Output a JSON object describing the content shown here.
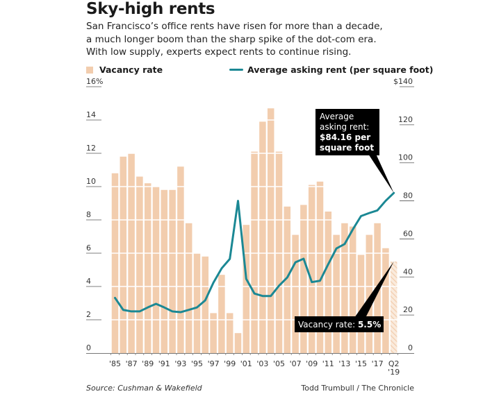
{
  "header": {
    "title": "Sky-high rents",
    "subtitle_lines": [
      "San Francisco’s office rents have risen for more than a decade,",
      "a much longer boom than the sharp spike of the dot-com era.",
      "With low supply, experts expect rents to continue rising."
    ]
  },
  "footer": {
    "source": "Source: Cushman & Wakefield",
    "credit": "Todd Trumbull / The Chronicle"
  },
  "colors": {
    "bar": "#F2CDAE",
    "bar_hatch": "#F8E3D2",
    "line": "#1B8894",
    "annotation_bg": "#000000",
    "annotation_text": "#ffffff"
  },
  "chart_data": {
    "type": "bar+line",
    "title": "Sky-high rents",
    "categories": [
      "'85",
      "'86",
      "'87",
      "'88",
      "'89",
      "'90",
      "'91",
      "'92",
      "'93",
      "'94",
      "'95",
      "'96",
      "'97",
      "'98",
      "'99",
      "'00",
      "'01",
      "'02",
      "'03",
      "'04",
      "'05",
      "'06",
      "'07",
      "'08",
      "'09",
      "'10",
      "'11",
      "'12",
      "'13",
      "'14",
      "'15",
      "'16",
      "'17",
      "'18",
      "Q2 '19"
    ],
    "x_tick_labels": [
      "'85",
      "'87",
      "'89",
      "'91",
      "'93",
      "'95",
      "'97",
      "'99",
      "'01",
      "'03",
      "'05",
      "'07",
      "'09",
      "'11",
      "'13",
      "'15",
      "'17",
      "Q2\n'19"
    ],
    "series": [
      {
        "name": "Vacancy rate",
        "type": "bar",
        "axis": "left",
        "unit": "%",
        "values": [
          10.8,
          11.8,
          12.0,
          10.6,
          10.2,
          10.0,
          9.8,
          9.8,
          11.2,
          7.8,
          6.0,
          5.8,
          2.4,
          4.7,
          2.4,
          1.2,
          7.7,
          12.1,
          13.9,
          14.7,
          12.1,
          8.8,
          7.1,
          8.9,
          10.1,
          10.3,
          8.5,
          7.1,
          7.8,
          7.6,
          5.9,
          7.1,
          7.8,
          6.3,
          5.5
        ],
        "hatched_last": true
      },
      {
        "name": "Average asking rent (per square foot)",
        "type": "line",
        "axis": "right",
        "unit": "$",
        "values": [
          29,
          22.7,
          21.9,
          21.9,
          24,
          25.9,
          24,
          21.9,
          21.5,
          22.7,
          24,
          27.7,
          37,
          44.5,
          49.5,
          80,
          39,
          31.3,
          30,
          30,
          35.4,
          39.7,
          47.7,
          49.6,
          37.3,
          38,
          46.7,
          55,
          57.3,
          65,
          72,
          73.6,
          75,
          80,
          84.16
        ]
      }
    ],
    "left_axis": {
      "ylim": [
        0,
        16
      ],
      "ticks": [
        0,
        2,
        4,
        6,
        8,
        10,
        12,
        14,
        16
      ],
      "tick_labels": [
        "0",
        "2",
        "4",
        "6",
        "8",
        "10",
        "12",
        "14",
        "16%"
      ]
    },
    "right_axis": {
      "ylim": [
        0,
        140
      ],
      "ticks": [
        0,
        20,
        40,
        60,
        80,
        100,
        120,
        140
      ],
      "tick_labels": [
        "0",
        "20",
        "40",
        "60",
        "80",
        "100",
        "120",
        "$140"
      ]
    },
    "legend": {
      "placement": "top",
      "entries": [
        "Vacancy rate",
        "Average asking rent (per square foot)"
      ]
    },
    "grid": "horizontal white lines across bars",
    "annotations": [
      {
        "target": "rent",
        "index": 34,
        "lines": [
          {
            "text": "Average",
            "bold": false
          },
          {
            "text": "asking rent:",
            "bold": false
          },
          {
            "text": "$84.16 per",
            "bold": true
          },
          {
            "text": "square foot",
            "bold": true
          }
        ]
      },
      {
        "target": "vacancy",
        "index": 34,
        "lines": [
          {
            "text": "Vacancy rate: ",
            "bold": false,
            "tail": "5.5%"
          }
        ]
      }
    ]
  }
}
